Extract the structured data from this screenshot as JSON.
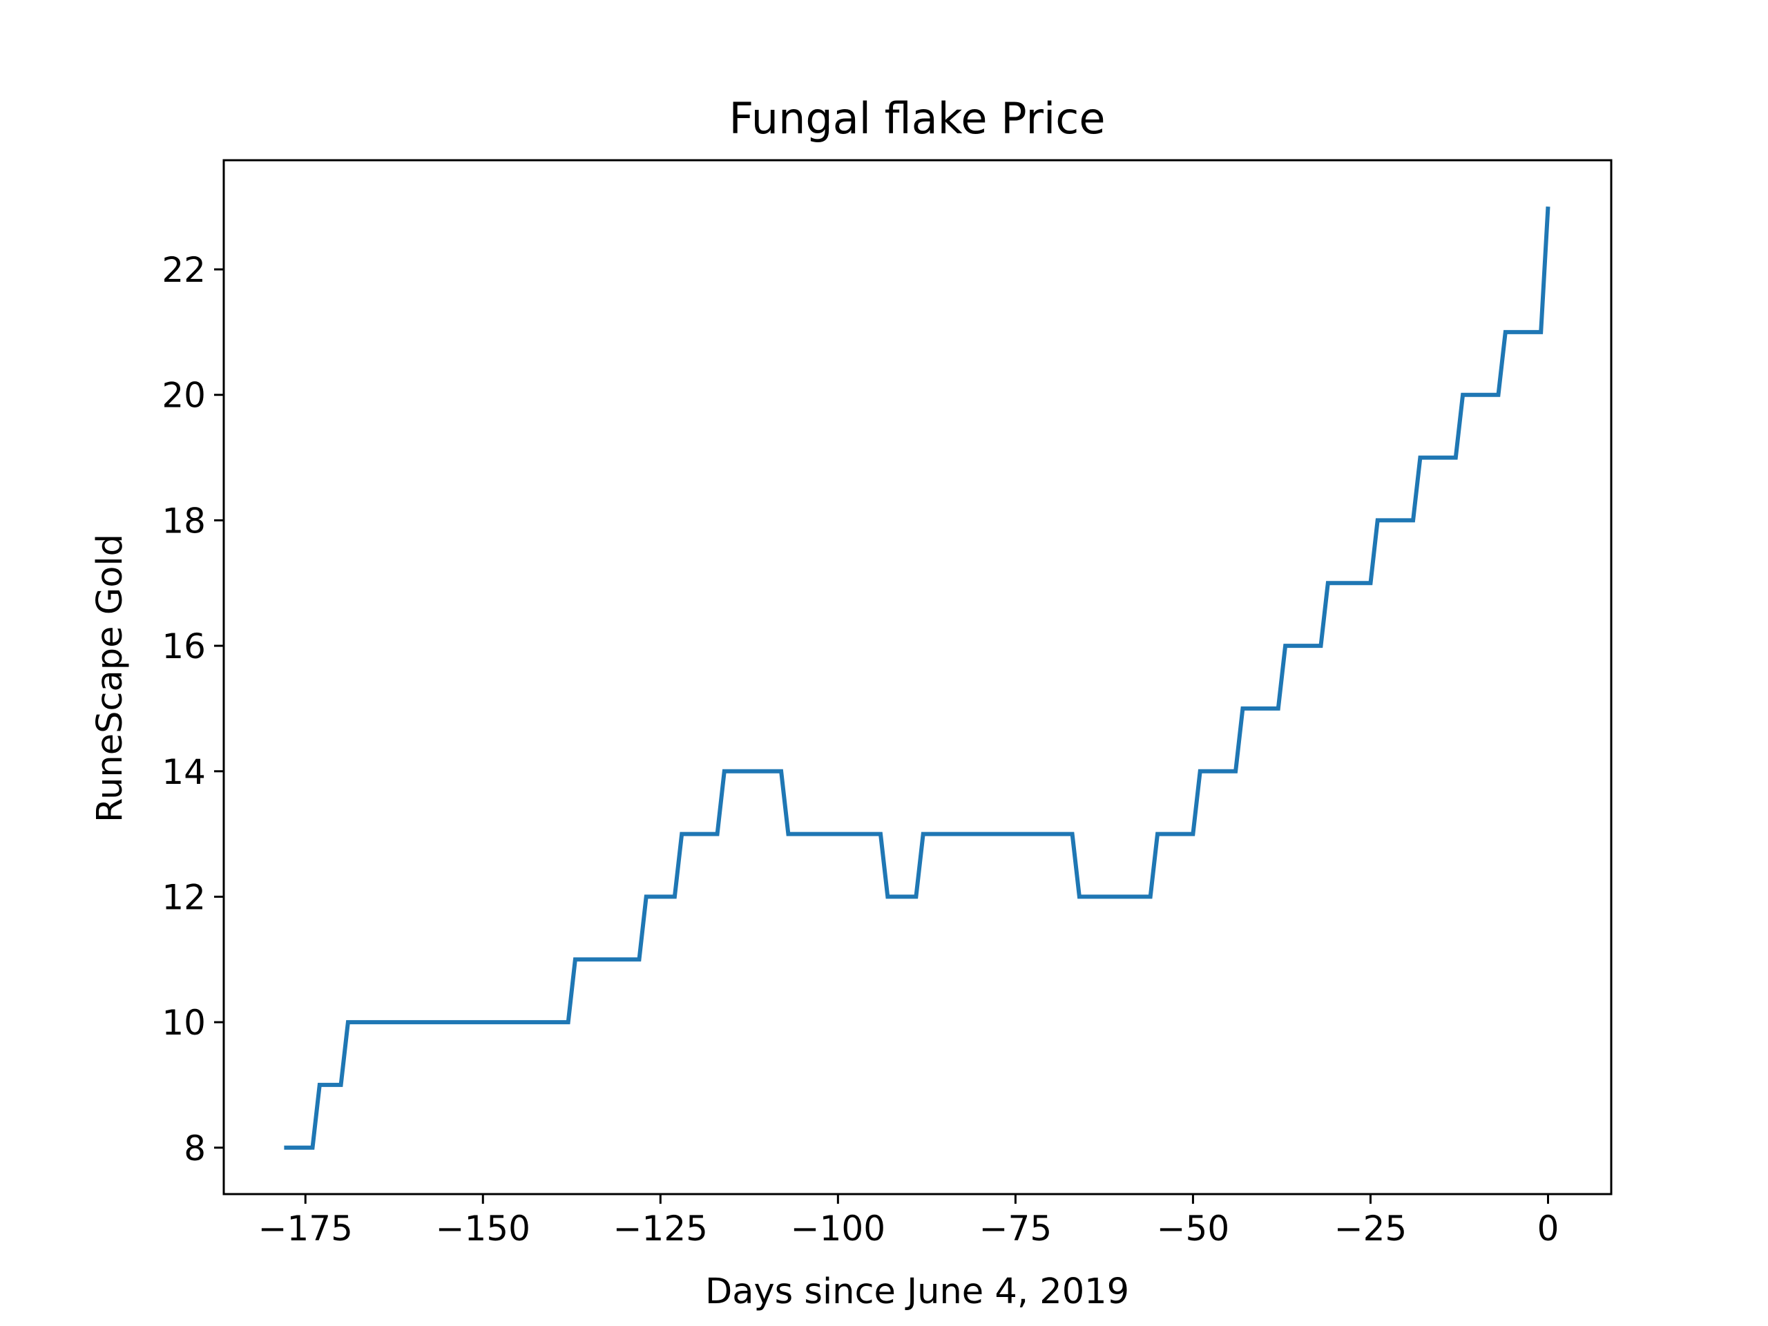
{
  "chart_data": {
    "type": "line",
    "title": "Fungal flake Price",
    "xlabel": "Days since June 4, 2019",
    "ylabel": "RuneScape Gold",
    "xlim": [
      -186.5,
      8.9
    ],
    "ylim": [
      7.26,
      23.74
    ],
    "grid": false,
    "legend": "none",
    "line_color": "#1f77b4",
    "xticks": [
      -175,
      -150,
      -125,
      -100,
      -75,
      -50,
      -25,
      0
    ],
    "xtick_labels": [
      "−175",
      "−150",
      "−125",
      "−100",
      "−75",
      "−50",
      "−25",
      "0"
    ],
    "yticks": [
      8,
      10,
      12,
      14,
      16,
      18,
      20,
      22
    ],
    "ytick_labels": [
      "8",
      "10",
      "12",
      "14",
      "16",
      "18",
      "20",
      "22"
    ],
    "series": [
      {
        "x": [
          -178,
          -174,
          -173,
          -170,
          -169,
          -138,
          -137,
          -128,
          -127,
          -123,
          -122,
          -117,
          -116,
          -108,
          -107,
          -94,
          -93,
          -89,
          -88,
          -67,
          -66,
          -56,
          -55,
          -50,
          -49,
          -44,
          -43,
          -38,
          -37,
          -32,
          -31,
          -25,
          -24,
          -19,
          -18,
          -13,
          -12,
          -7,
          -6,
          -1,
          0
        ],
        "y": [
          8,
          8,
          9,
          9,
          10,
          10,
          11,
          11,
          12,
          12,
          13,
          13,
          14,
          14,
          13,
          13,
          12,
          12,
          13,
          13,
          12,
          12,
          13,
          13,
          14,
          14,
          15,
          15,
          16,
          16,
          17,
          17,
          18,
          18,
          19,
          19,
          20,
          20,
          21,
          21,
          23
        ]
      }
    ]
  }
}
